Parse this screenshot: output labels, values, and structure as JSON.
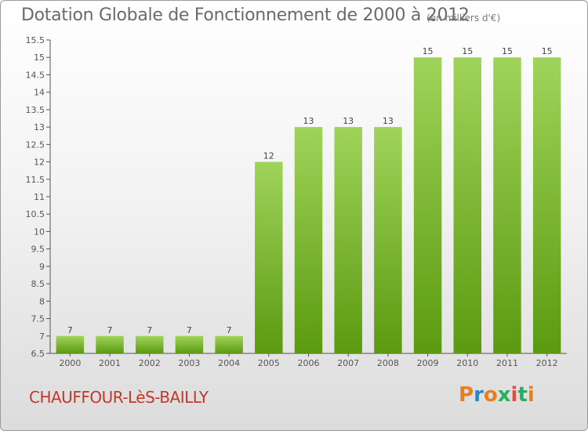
{
  "header": {
    "title": "Dotation Globale de Fonctionnement de 2000 à 2012",
    "subtitle": "(en milliers d'€)"
  },
  "footer": {
    "commune": "CHAUFFOUR-LèS-BAILLY",
    "logo": {
      "letters": [
        "P",
        "r",
        "o",
        "x",
        "i",
        "t",
        "i"
      ],
      "colors": [
        "#e67e22",
        "#2e86c1",
        "#e67e22",
        "#27ae60",
        "#e74c3c",
        "#27ae60",
        "#e67e22"
      ]
    }
  },
  "colors": {
    "bar_top": "#9fd45a",
    "bar_bottom": "#5b9a10",
    "axis": "#555555"
  },
  "chart_data": {
    "type": "bar",
    "title": "Dotation Globale de Fonctionnement de 2000 à 2012",
    "subtitle": "(en milliers d'€)",
    "xlabel": "",
    "ylabel": "",
    "categories": [
      "2000",
      "2001",
      "2002",
      "2003",
      "2004",
      "2005",
      "2006",
      "2007",
      "2008",
      "2009",
      "2010",
      "2011",
      "2012"
    ],
    "values": [
      7,
      7,
      7,
      7,
      7,
      12,
      13,
      13,
      13,
      15,
      15,
      15,
      15
    ],
    "value_labels": [
      "7",
      "7",
      "7",
      "7",
      "7",
      "12",
      "13",
      "13",
      "13",
      "15",
      "15",
      "15",
      "15"
    ],
    "ylim": [
      6.5,
      15.5
    ],
    "yticks": [
      6.5,
      7,
      7.5,
      8,
      8.5,
      9,
      9.5,
      10,
      10.5,
      11,
      11.5,
      12,
      12.5,
      13,
      13.5,
      14,
      14.5,
      15,
      15.5
    ],
    "ytick_labels": [
      "6.5",
      "7",
      "7.5",
      "8",
      "8.5",
      "9",
      "9.5",
      "10",
      "10.5",
      "11",
      "11.5",
      "12",
      "12.5",
      "13",
      "13.5",
      "14",
      "14.5",
      "15",
      "15.5"
    ],
    "grid": false,
    "legend": "none"
  }
}
